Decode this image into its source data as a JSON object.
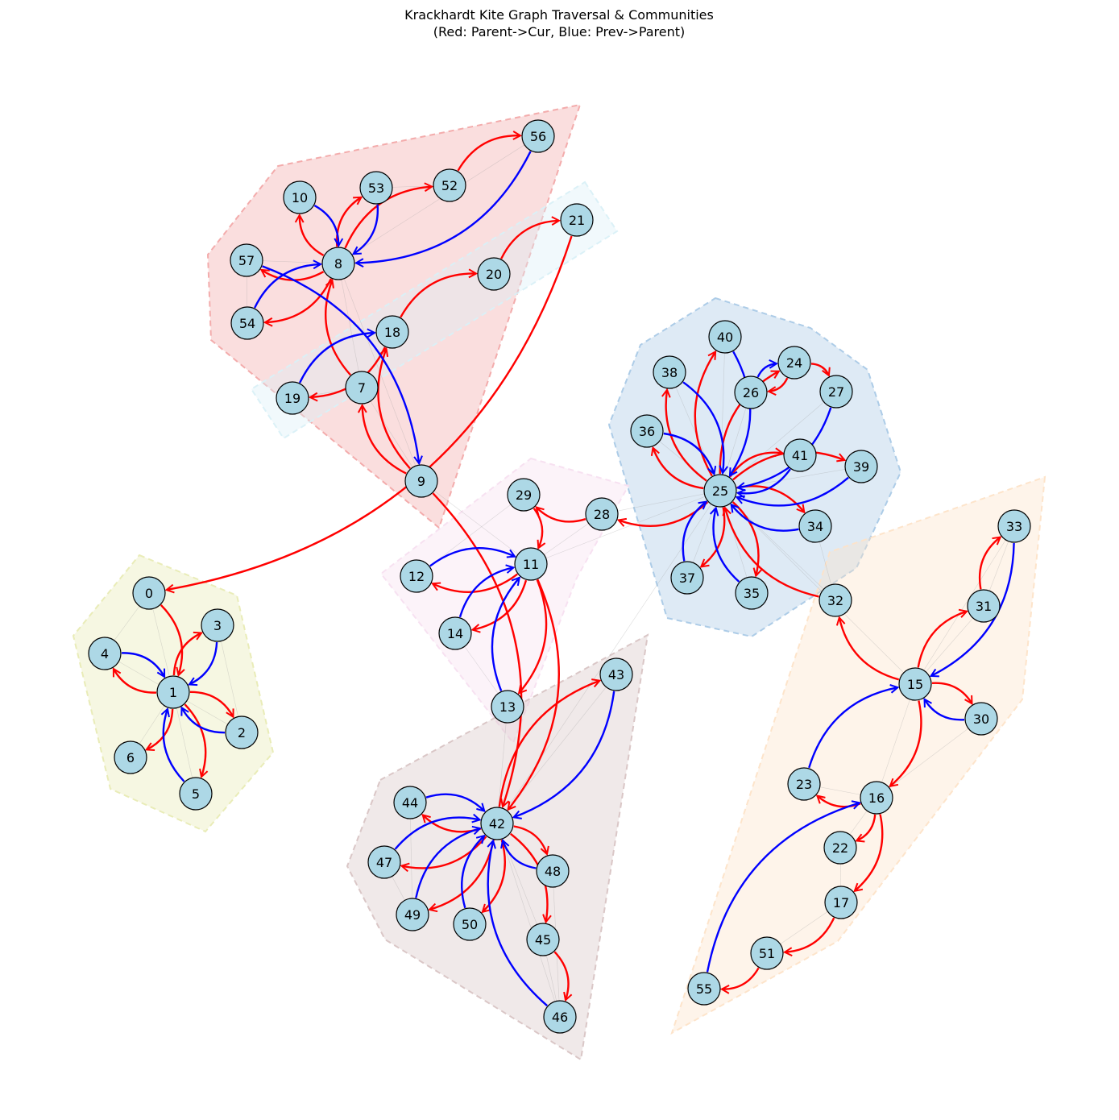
{
  "title": {
    "line1": "Krackhardt Kite Graph Traversal & Communities",
    "line2": "(Red: Parent->Cur, Blue: Prev->Parent)"
  },
  "colors": {
    "node_fill": "#add8e6",
    "node_stroke": "#000000",
    "red_edge": "#ff0000",
    "blue_edge": "#0000ff",
    "faint_edge": "#9a9a9a"
  },
  "communities": [
    {
      "id": "c1",
      "color": "#f2a8a8",
      "nodes": [
        "7",
        "8",
        "9",
        "10",
        "52",
        "53",
        "54",
        "56",
        "57"
      ]
    },
    {
      "id": "c2",
      "color": "#d9f0f7",
      "nodes": [
        "18",
        "19",
        "20",
        "21"
      ]
    },
    {
      "id": "c3",
      "color": "#a9c9e6",
      "nodes": [
        "24",
        "25",
        "26",
        "27",
        "34",
        "35",
        "36",
        "37",
        "38",
        "39",
        "40",
        "41"
      ]
    },
    {
      "id": "c4",
      "color": "#f7dff0",
      "nodes": [
        "11",
        "12",
        "13",
        "14",
        "28",
        "29"
      ]
    },
    {
      "id": "c5",
      "color": "#e8ebb4",
      "nodes": [
        "0",
        "1",
        "2",
        "3",
        "4",
        "5",
        "6"
      ]
    },
    {
      "id": "c6",
      "color": "#d8c4c4",
      "nodes": [
        "42",
        "43",
        "44",
        "45",
        "46",
        "47",
        "48",
        "49",
        "50"
      ]
    },
    {
      "id": "c7",
      "color": "#fde3c8",
      "nodes": [
        "15",
        "16",
        "17",
        "22",
        "23",
        "30",
        "31",
        "32",
        "33",
        "51",
        "55"
      ]
    }
  ],
  "nodes": [
    "0",
    "1",
    "2",
    "3",
    "4",
    "5",
    "6",
    "7",
    "8",
    "9",
    "10",
    "11",
    "12",
    "13",
    "14",
    "15",
    "16",
    "17",
    "18",
    "19",
    "20",
    "21",
    "22",
    "23",
    "24",
    "25",
    "26",
    "27",
    "28",
    "29",
    "30",
    "31",
    "32",
    "33",
    "34",
    "35",
    "36",
    "37",
    "38",
    "39",
    "40",
    "41",
    "42",
    "43",
    "44",
    "45",
    "46",
    "47",
    "48",
    "49",
    "50",
    "51",
    "52",
    "53",
    "54",
    "55",
    "56",
    "57"
  ],
  "red_edges": [
    [
      "1",
      "4"
    ],
    [
      "1",
      "3"
    ],
    [
      "1",
      "2"
    ],
    [
      "1",
      "6"
    ],
    [
      "1",
      "5"
    ],
    [
      "0",
      "1"
    ],
    [
      "8",
      "10"
    ],
    [
      "8",
      "53"
    ],
    [
      "8",
      "52"
    ],
    [
      "8",
      "57"
    ],
    [
      "8",
      "54"
    ],
    [
      "52",
      "56"
    ],
    [
      "7",
      "8"
    ],
    [
      "9",
      "7"
    ],
    [
      "9",
      "18"
    ],
    [
      "18",
      "19"
    ],
    [
      "18",
      "20"
    ],
    [
      "20",
      "21"
    ],
    [
      "21",
      "0"
    ],
    [
      "9",
      "42"
    ],
    [
      "42",
      "44"
    ],
    [
      "42",
      "47"
    ],
    [
      "42",
      "49"
    ],
    [
      "42",
      "50"
    ],
    [
      "42",
      "48"
    ],
    [
      "42",
      "45"
    ],
    [
      "42",
      "43"
    ],
    [
      "45",
      "46"
    ],
    [
      "11",
      "12"
    ],
    [
      "11",
      "14"
    ],
    [
      "11",
      "13"
    ],
    [
      "11",
      "42"
    ],
    [
      "28",
      "29"
    ],
    [
      "29",
      "11"
    ],
    [
      "25",
      "28"
    ],
    [
      "25",
      "38"
    ],
    [
      "25",
      "36"
    ],
    [
      "25",
      "37"
    ],
    [
      "25",
      "35"
    ],
    [
      "25",
      "34"
    ],
    [
      "25",
      "39"
    ],
    [
      "25",
      "41"
    ],
    [
      "25",
      "24"
    ],
    [
      "25",
      "40"
    ],
    [
      "24",
      "26"
    ],
    [
      "24",
      "27"
    ],
    [
      "32",
      "25"
    ],
    [
      "15",
      "32"
    ],
    [
      "15",
      "31"
    ],
    [
      "31",
      "33"
    ],
    [
      "15",
      "30"
    ],
    [
      "15",
      "16"
    ],
    [
      "16",
      "23"
    ],
    [
      "16",
      "22"
    ],
    [
      "16",
      "17"
    ],
    [
      "17",
      "51"
    ],
    [
      "51",
      "55"
    ]
  ],
  "blue_edges": [
    [
      "3",
      "1"
    ],
    [
      "4",
      "1"
    ],
    [
      "2",
      "1"
    ],
    [
      "5",
      "1"
    ],
    [
      "10",
      "8"
    ],
    [
      "53",
      "8"
    ],
    [
      "56",
      "8"
    ],
    [
      "54",
      "8"
    ],
    [
      "57",
      "9"
    ],
    [
      "19",
      "18"
    ],
    [
      "12",
      "11"
    ],
    [
      "14",
      "11"
    ],
    [
      "13",
      "11"
    ],
    [
      "43",
      "42"
    ],
    [
      "44",
      "42"
    ],
    [
      "47",
      "42"
    ],
    [
      "49",
      "42"
    ],
    [
      "50",
      "42"
    ],
    [
      "48",
      "42"
    ],
    [
      "46",
      "42"
    ],
    [
      "38",
      "25"
    ],
    [
      "40",
      "25"
    ],
    [
      "36",
      "25"
    ],
    [
      "27",
      "25"
    ],
    [
      "26",
      "24"
    ],
    [
      "39",
      "25"
    ],
    [
      "34",
      "25"
    ],
    [
      "37",
      "25"
    ],
    [
      "35",
      "25"
    ],
    [
      "41",
      "25"
    ],
    [
      "33",
      "15"
    ],
    [
      "30",
      "15"
    ],
    [
      "23",
      "15"
    ],
    [
      "55",
      "16"
    ]
  ],
  "faint_edges": [
    [
      "0",
      "1"
    ],
    [
      "0",
      "4"
    ],
    [
      "1",
      "6"
    ],
    [
      "1",
      "5"
    ],
    [
      "4",
      "2"
    ],
    [
      "3",
      "2"
    ],
    [
      "8",
      "7"
    ],
    [
      "8",
      "9"
    ],
    [
      "8",
      "57"
    ],
    [
      "54",
      "57"
    ],
    [
      "53",
      "52"
    ],
    [
      "8",
      "56"
    ],
    [
      "7",
      "9"
    ],
    [
      "19",
      "7"
    ],
    [
      "18",
      "7"
    ],
    [
      "9",
      "11"
    ],
    [
      "11",
      "28"
    ],
    [
      "11",
      "25"
    ],
    [
      "12",
      "29"
    ],
    [
      "14",
      "13"
    ],
    [
      "13",
      "42"
    ],
    [
      "28",
      "25"
    ],
    [
      "25",
      "15"
    ],
    [
      "25",
      "32"
    ],
    [
      "25",
      "37"
    ],
    [
      "25",
      "35"
    ],
    [
      "25",
      "36"
    ],
    [
      "25",
      "40"
    ],
    [
      "25",
      "26"
    ],
    [
      "25",
      "39"
    ],
    [
      "34",
      "32"
    ],
    [
      "25",
      "27"
    ],
    [
      "25",
      "38"
    ],
    [
      "42",
      "46"
    ],
    [
      "42",
      "45"
    ],
    [
      "45",
      "46"
    ],
    [
      "44",
      "49"
    ],
    [
      "47",
      "49"
    ],
    [
      "48",
      "46"
    ],
    [
      "42",
      "43"
    ],
    [
      "15",
      "31"
    ],
    [
      "15",
      "33"
    ],
    [
      "15",
      "16"
    ],
    [
      "16",
      "22"
    ],
    [
      "16",
      "23"
    ],
    [
      "17",
      "51"
    ],
    [
      "22",
      "17"
    ],
    [
      "33",
      "31"
    ],
    [
      "42",
      "25"
    ],
    [
      "30",
      "16"
    ]
  ]
}
